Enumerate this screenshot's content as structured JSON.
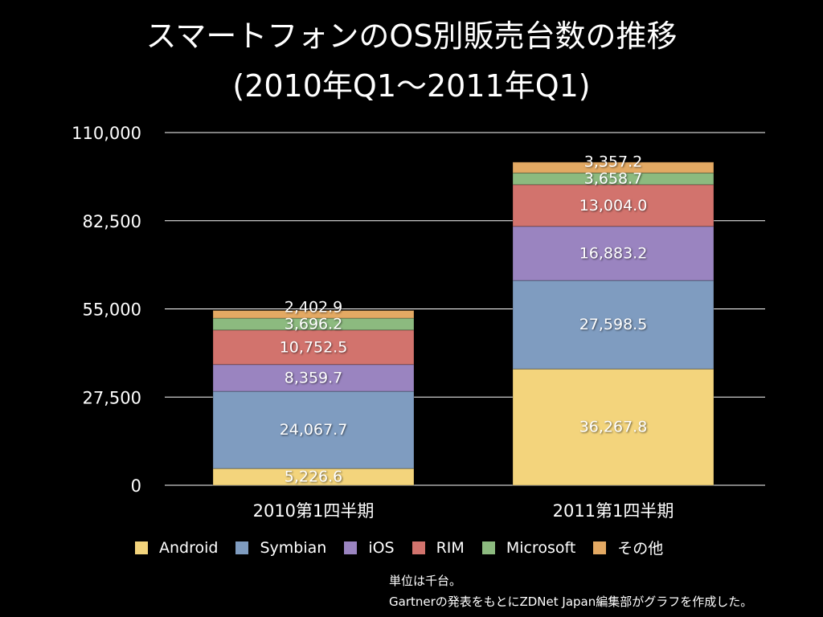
{
  "chart_data": {
    "type": "bar",
    "stacked": true,
    "title": "スマートフォンのOS別販売台数の推移",
    "subtitle": "(2010年Q1〜2011年Q1)",
    "categories": [
      "2010第1四半期",
      "2011第1四半期"
    ],
    "ylim": [
      0,
      110000
    ],
    "yticks": [
      "0",
      "27,500",
      "55,000",
      "82,500",
      "110,000"
    ],
    "ytick_values": [
      0,
      27500,
      55000,
      82500,
      110000
    ],
    "grid": true,
    "legend_position": "bottom",
    "series": [
      {
        "name": "Android",
        "color": "#f3d47c",
        "values": [
          5226.6,
          36267.8
        ],
        "labels": [
          "5,226.6",
          "36,267.8"
        ]
      },
      {
        "name": "Symbian",
        "color": "#7f9cc0",
        "values": [
          24067.7,
          27598.5
        ],
        "labels": [
          "24,067.7",
          "27,598.5"
        ]
      },
      {
        "name": "iOS",
        "color": "#9a84c0",
        "values": [
          8359.7,
          16883.2
        ],
        "labels": [
          "8,359.7",
          "16,883.2"
        ]
      },
      {
        "name": "RIM",
        "color": "#d2736d",
        "values": [
          10752.5,
          13004.0
        ],
        "labels": [
          "10,752.5",
          "13,004.0"
        ]
      },
      {
        "name": "Microsoft",
        "color": "#8cba7f",
        "values": [
          3696.2,
          3658.7
        ],
        "labels": [
          "3,696.2",
          "3,658.7"
        ]
      },
      {
        "name": "その他",
        "color": "#e3a963",
        "values": [
          2402.9,
          3357.2
        ],
        "labels": [
          "2,402.9",
          "3,357.2"
        ]
      }
    ]
  },
  "notes": [
    "単位は千台。",
    "Gartnerの発表をもとにZDNet Japan編集部がグラフを作成した。"
  ]
}
